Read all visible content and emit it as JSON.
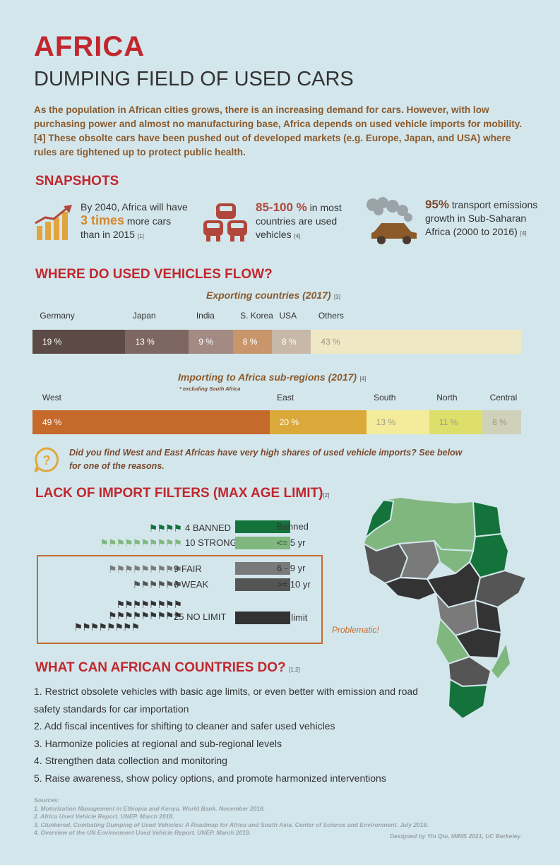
{
  "header": {
    "title": "AFRICA",
    "subtitle": "DUMPING FIELD OF USED CARS",
    "intro": "As the population in African cities grows, there is an increasing demand for cars. However, with low purchasing power and almost no manufacturing base, Africa depends on used vehicle imports for mobility. [4] These obsolte cars have been pushed out of developed markets (e.g. Europe, Japan, and USA) where rules are tightened up to protect public health."
  },
  "snapshots": {
    "heading": "SNAPSHOTS",
    "s1": {
      "pre": "By 2040, Africa will have ",
      "highlight": "3 times",
      "post": " more cars than in 2015 ",
      "ref": "[1]"
    },
    "s2": {
      "highlight": "85-100 %",
      "post": " in most countries are used  vehicles ",
      "ref": "[4]"
    },
    "s3": {
      "highlight": "95%",
      "post": " transport emissions growth in Sub-Saharan Africa (2000 to 2016) ",
      "ref": "[4]"
    }
  },
  "flow": {
    "heading": "WHERE DO USED VEHICLES FLOW?",
    "export_title": "Exporting countries (2017)",
    "export_ref": "[3]",
    "export": [
      {
        "name": "Germany",
        "value": 19,
        "label": "19 %",
        "color": "#5b4a45"
      },
      {
        "name": "Japan",
        "value": 13,
        "label": "13 %",
        "color": "#7d6760"
      },
      {
        "name": "India",
        "value": 9,
        "label": "9 %",
        "color": "#a38a82"
      },
      {
        "name": "S. Korea",
        "value": 8,
        "label": "8 %",
        "color": "#c9956a"
      },
      {
        "name": "USA",
        "value": 8,
        "label": "8 %",
        "color": "#c8b8a8"
      },
      {
        "name": "Others",
        "value": 43,
        "label": "43 %",
        "color": "#f0e8c4"
      }
    ],
    "import_title": "Importing to Africa sub-regions (2017)",
    "import_ref": "[4]",
    "import_note": "* excluding South Africa",
    "import": [
      {
        "name": "West",
        "value": 49,
        "label": "49 %",
        "color": "#c66a2c"
      },
      {
        "name": "East",
        "value": 20,
        "label": "20 %",
        "color": "#dba83a"
      },
      {
        "name": "South",
        "value": 13,
        "label": "13 %",
        "color": "#f4ec9a"
      },
      {
        "name": "North",
        "value": 11,
        "label": "11 %",
        "color": "#dede6a"
      },
      {
        "name": "Central",
        "value": 8,
        "label": "8 %",
        "color": "#cfd2b8"
      }
    ],
    "question": "Did you find West and East Africas have very high shares of used vehicle imports? See below for one of the reasons."
  },
  "filters": {
    "heading": "LACK OF IMPORT FILTERS (MAX AGE LIMIT)",
    "ref": "[2]",
    "groups": [
      {
        "count": 4,
        "label": "4 BANNED",
        "color": "#13733b"
      },
      {
        "count": 10,
        "label": "10 STRONG",
        "color": "#7fb77e"
      },
      {
        "count": 9,
        "label": "9 FAIR",
        "color": "#7a7a7a"
      },
      {
        "count": 6,
        "label": "6 WEAK",
        "color": "#555555"
      },
      {
        "count": 25,
        "label": "25 NO LIMIT",
        "color": "#333333"
      }
    ],
    "legend": [
      {
        "label": "Banned",
        "color": "#13733b"
      },
      {
        "label": "<= 5 yr",
        "color": "#7fb77e"
      },
      {
        "label": "6 - 9 yr",
        "color": "#7a7a7a"
      },
      {
        "label": ">= 10 yr",
        "color": "#555555"
      },
      {
        "label": "No limit",
        "color": "#333333"
      }
    ],
    "problematic": "Problematic!"
  },
  "actions": {
    "heading": "WHAT CAN AFRICAN COUNTRIES DO?",
    "ref": "[1,2]",
    "items": [
      "1. Restrict obsolete vehicles with basic age limits, or even better with emission and road safety standards for car importation",
      "2. Add fiscal incentives for shifting to cleaner and safer used vehicles",
      "3. Harmonize policies at regional and sub-regional levels",
      "4. Strengthen data collection and monitoring",
      "5. Raise awareness, show policy options, and promote harmonized interventions"
    ]
  },
  "sources": {
    "heading": "Sources:",
    "items": [
      "1. Motorization Management in Ethiopia and Kenya. World Bank. November 2018.",
      "2. Africa Used Vehicle Report. UNEP. March 2018.",
      "3. Clunkered, Combating Dumping of Used Vehicles: A Roadmap for Africa and South Asia. Center of Science and Environment. July 2018.",
      "4. Overview of the UN Environment Used Vehicle Report. UNEP. March 2019."
    ],
    "credit": "Designed by Yin Qiu, MIMS 2021, UC Berkeley"
  },
  "icons": [
    "growth-chart-icon",
    "cars-pile-icon",
    "smoking-car-icon",
    "question-bubble-icon",
    "flag-icon",
    "africa-map-icon"
  ]
}
